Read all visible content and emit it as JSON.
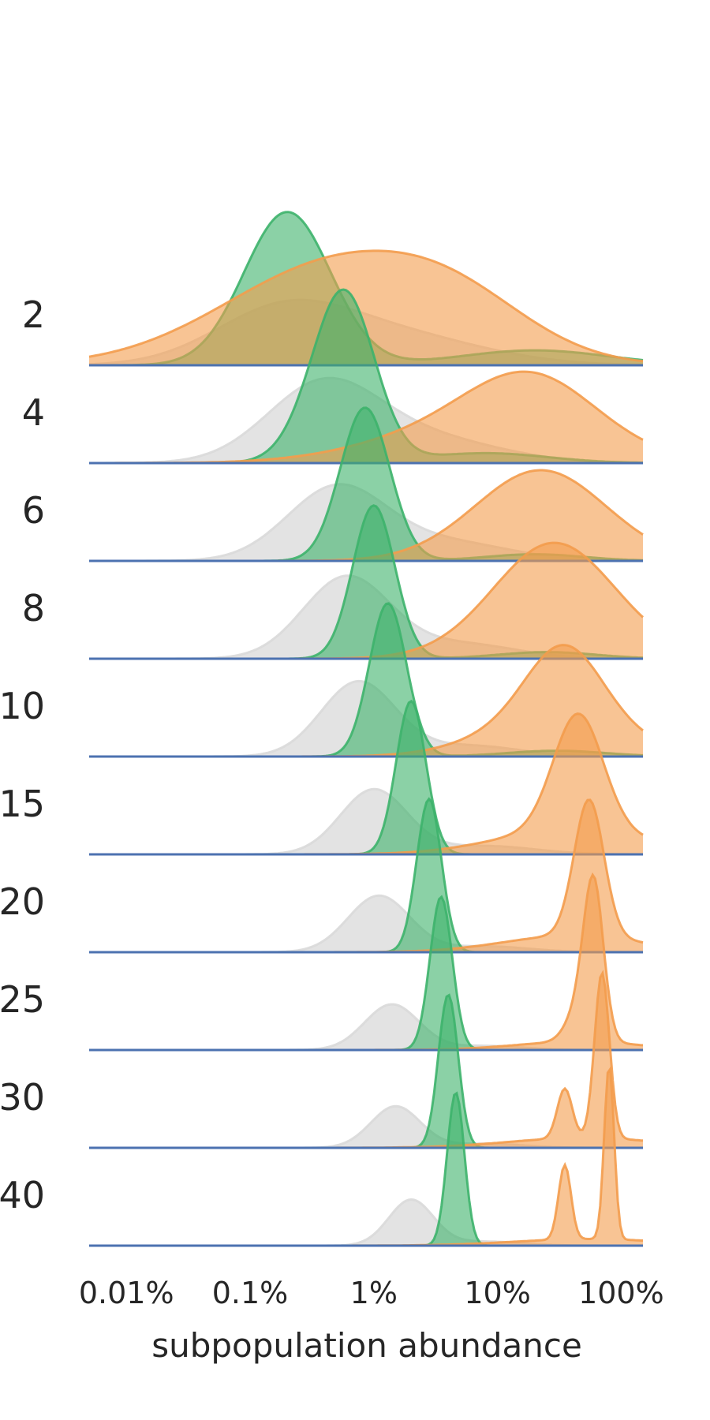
{
  "chart_data": {
    "type": "ridgeline",
    "xlabel": "subpopulation abundance",
    "x_scale": "log",
    "xlim": [
      0.005,
      150
    ],
    "x_ticks": [
      0.01,
      0.1,
      1,
      10,
      100
    ],
    "x_tick_labels": [
      "0.01%",
      "0.1%",
      "1%",
      "10%",
      "100%"
    ],
    "rows": [
      "2",
      "4",
      "6",
      "8",
      "10",
      "15",
      "20",
      "25",
      "30",
      "40"
    ],
    "series": [
      {
        "name_hint": "gray",
        "color": "#d9d9d9",
        "components": [
          {
            "center": [
              0.18,
              0.38,
              0.5,
              0.6,
              0.75,
              1.0,
              1.1,
              1.4,
              1.5,
              2.0
            ],
            "spread": [
              0.55,
              0.45,
              0.4,
              0.35,
              0.3,
              0.27,
              0.25,
              0.22,
              0.2,
              0.18
            ],
            "height": [
              0.62,
              0.9,
              0.88,
              0.98,
              0.9,
              0.78,
              0.68,
              0.55,
              0.5,
              0.55
            ]
          },
          {
            "center": [
              1.5,
              2.5,
              4.0,
              5.0,
              6.0,
              8.0,
              8.0,
              8.0,
              8.0,
              8.0
            ],
            "spread": [
              0.7,
              0.6,
              0.5,
              0.45,
              0.4,
              0.4,
              0.35,
              0.3,
              0.3,
              0.3
            ],
            "height": [
              0.35,
              0.3,
              0.22,
              0.18,
              0.13,
              0.1,
              0.07,
              0.05,
              0.05,
              0.05
            ]
          }
        ]
      },
      {
        "name_hint": "green",
        "color": "#3db36b",
        "components": [
          {
            "center": [
              0.2,
              0.6,
              0.85,
              1.0,
              1.3,
              2.0,
              2.8,
              3.5,
              4.0,
              4.6
            ],
            "spread": [
              0.35,
              0.24,
              0.2,
              0.17,
              0.15,
              0.12,
              0.1,
              0.09,
              0.08,
              0.07
            ],
            "height": [
              1.85,
              1.85,
              1.85,
              1.85,
              1.85,
              1.85,
              1.85,
              1.85,
              1.85,
              1.85
            ]
          },
          {
            "center": [
              0.12,
              0.35,
              1.5,
              2.0,
              2.5,
              3.5,
              4.5,
              5.5,
              6.5,
              7.5
            ],
            "spread": [
              0.4,
              0.25,
              0.3,
              0.3,
              0.25,
              0.2,
              0.18,
              0.18,
              0.18,
              0.15
            ],
            "height": [
              0.0,
              0.35,
              0.0,
              0.0,
              0.0,
              0.0,
              0.0,
              0.0,
              0.0,
              0.0
            ]
          },
          {
            "center": [
              20,
              8,
              20,
              25,
              30,
              30,
              30,
              30,
              30,
              30
            ],
            "spread": [
              0.6,
              0.5,
              0.4,
              0.4,
              0.4,
              0.4,
              0.4,
              0.4,
              0.4,
              0.4
            ],
            "height": [
              0.18,
              0.12,
              0.08,
              0.08,
              0.07,
              0.0,
              0.0,
              0.0,
              0.0,
              0.0
            ]
          }
        ]
      },
      {
        "name_hint": "orange",
        "color": "#f39c4c",
        "components": [
          {
            "center": [
              0.5,
              8.0,
              20,
              28,
              35,
              45,
              55,
              60,
              70,
              80
            ],
            "spread": [
              0.9,
              0.8,
              0.55,
              0.45,
              0.3,
              0.2,
              0.12,
              0.08,
              0.06,
              0.04
            ],
            "height": [
              1.22,
              0.5,
              0.6,
              0.7,
              0.85,
              1.4,
              1.65,
              1.85,
              2.0,
              2.1
            ]
          },
          {
            "center": [
              5.0,
              20,
              25,
              30,
              30,
              40,
              40,
              45,
              50,
              55
            ],
            "spread": [
              0.6,
              0.5,
              0.5,
              0.55,
              0.55,
              0.6,
              0.55,
              0.5,
              0.6,
              0.6
            ],
            "height": [
              0.45,
              0.65,
              0.5,
              0.7,
              0.5,
              0.3,
              0.2,
              0.1,
              0.12,
              0.08
            ]
          },
          {
            "center": [
              30,
              30,
              40,
              50,
              45,
              45,
              45,
              45,
              35,
              35
            ],
            "spread": [
              0.5,
              0.3,
              0.2,
              0.18,
              0.17,
              0.16,
              0.14,
              0.1,
              0.06,
              0.05
            ],
            "height": [
              0.0,
              0.0,
              0.0,
              0.0,
              0.0,
              0.0,
              0.0,
              0.35,
              0.6,
              0.9
            ]
          }
        ]
      }
    ],
    "baseline_color": "#4c72b0"
  }
}
